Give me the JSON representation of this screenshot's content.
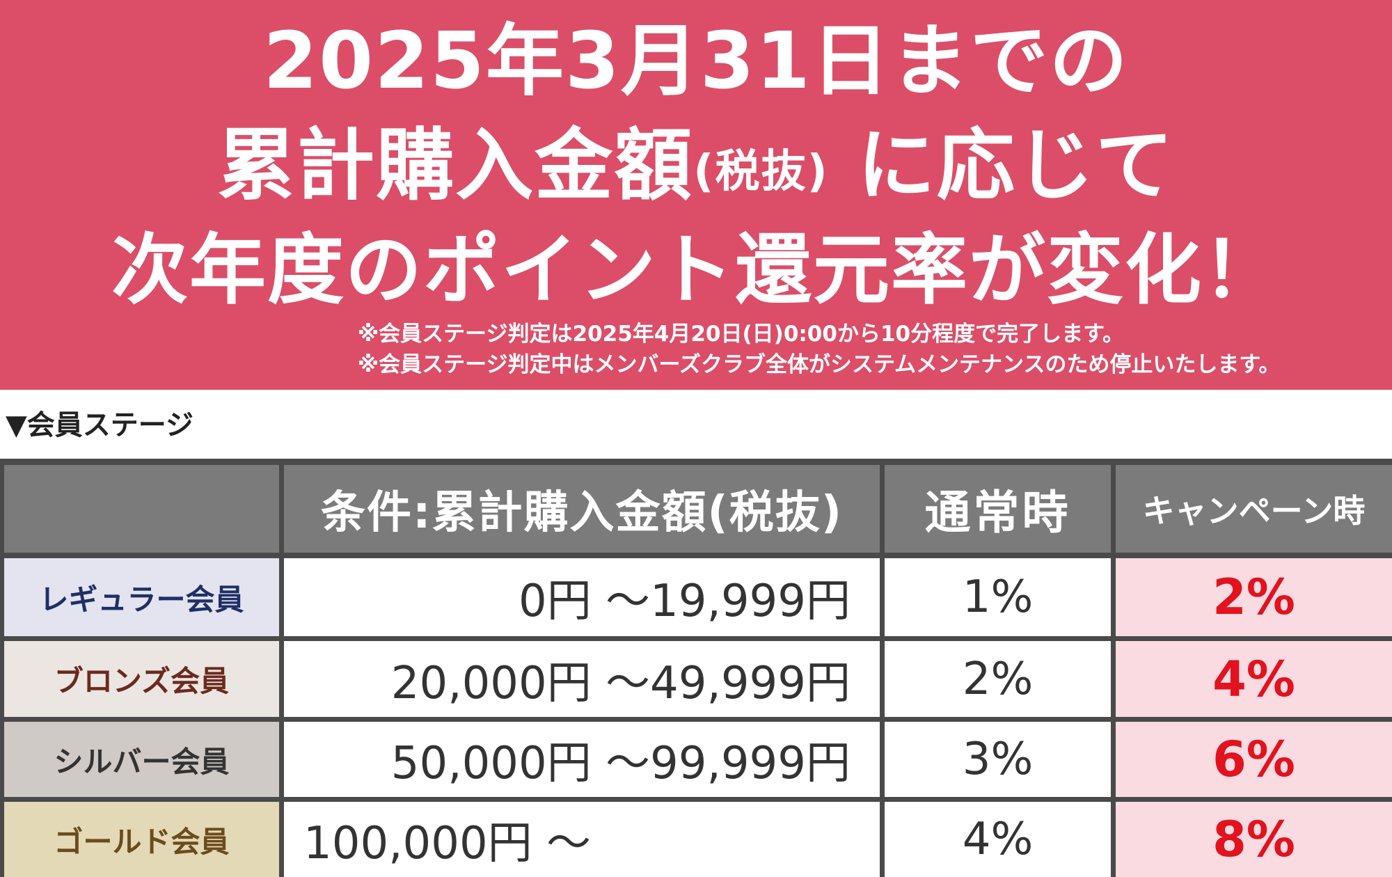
{
  "banner": {
    "headline_line1": "2025年3月31日までの",
    "headline_line2_main": "累計購入金額",
    "headline_line2_paren": "(税抜)",
    "headline_line2_tail": " に応じて",
    "headline_line3": "次年度のポイント還元率が変化！",
    "note1": "※会員ステージ判定は2025年4月20日(日)0:00から10分程度で完了します。",
    "note2": "※会員ステージ判定中はメンバーズクラブ全体がシステムメンテナンスのため停止いたします。",
    "background_color": "#dc4e68"
  },
  "section_label": "▼会員ステージ",
  "table": {
    "headers": {
      "stage": "",
      "condition": "条件:累計購入金額(税抜)",
      "normal": "通常時",
      "campaign": "キャンペーン時"
    },
    "rows": [
      {
        "stage": "レギュラー会員",
        "condition": "0円 ～19,999円",
        "normal": "1%",
        "campaign": "2%"
      },
      {
        "stage": "ブロンズ会員",
        "condition": "20,000円 ～49,999円",
        "normal": "2%",
        "campaign": "4%"
      },
      {
        "stage": "シルバー会員",
        "condition": "50,000円 ～99,999円",
        "normal": "3%",
        "campaign": "6%"
      },
      {
        "stage": "ゴールド会員",
        "condition": "100,000円 ～",
        "normal": "4%",
        "campaign": "8%"
      }
    ],
    "campaign_color": "#e2121f"
  }
}
